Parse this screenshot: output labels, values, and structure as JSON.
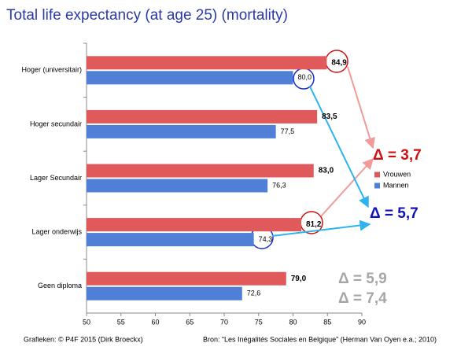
{
  "chart_data": {
    "type": "hbar",
    "title": "Total life expectancy (at age 25)  (mortality)",
    "categories": [
      "Hoger (universitair)",
      "Hoger secundair",
      "Lager Secundair",
      "Lager onderwijs",
      "Geen diploma"
    ],
    "series": [
      {
        "name": "Vrouwen",
        "color": "#e05a5c",
        "values": [
          84.9,
          83.5,
          83.0,
          81.2,
          79.0
        ],
        "value_labels": [
          "84,9",
          "83,5",
          "83,0",
          "81,2",
          "79,0"
        ]
      },
      {
        "name": "Mannen",
        "color": "#4f7fd6",
        "values": [
          80.0,
          77.5,
          76.3,
          74.3,
          72.6
        ],
        "value_labels": [
          "80,0",
          "77,5",
          "76,3",
          "74,3",
          "72,6"
        ]
      }
    ],
    "xlim": [
      50,
      90
    ],
    "xticks": [
      50,
      55,
      60,
      65,
      70,
      75,
      80,
      85,
      90
    ],
    "legend": "right",
    "annotations": [
      {
        "text": "Δ = 3,7",
        "color": "#d01010"
      },
      {
        "text": "Δ = 5,7",
        "color": "#1010c0"
      },
      {
        "text": "Δ = 5,9",
        "color": "#a6a6a6"
      },
      {
        "text": "Δ = 7,4",
        "color": "#a6a6a6"
      }
    ],
    "footnotes": [
      "Grafieken: © P4F 2015 (Dirk Broeckx)",
      "Bron: “Les Inégalités Sociales en Belgique” (Herman Van Oyen e.a.; 2010)"
    ]
  }
}
